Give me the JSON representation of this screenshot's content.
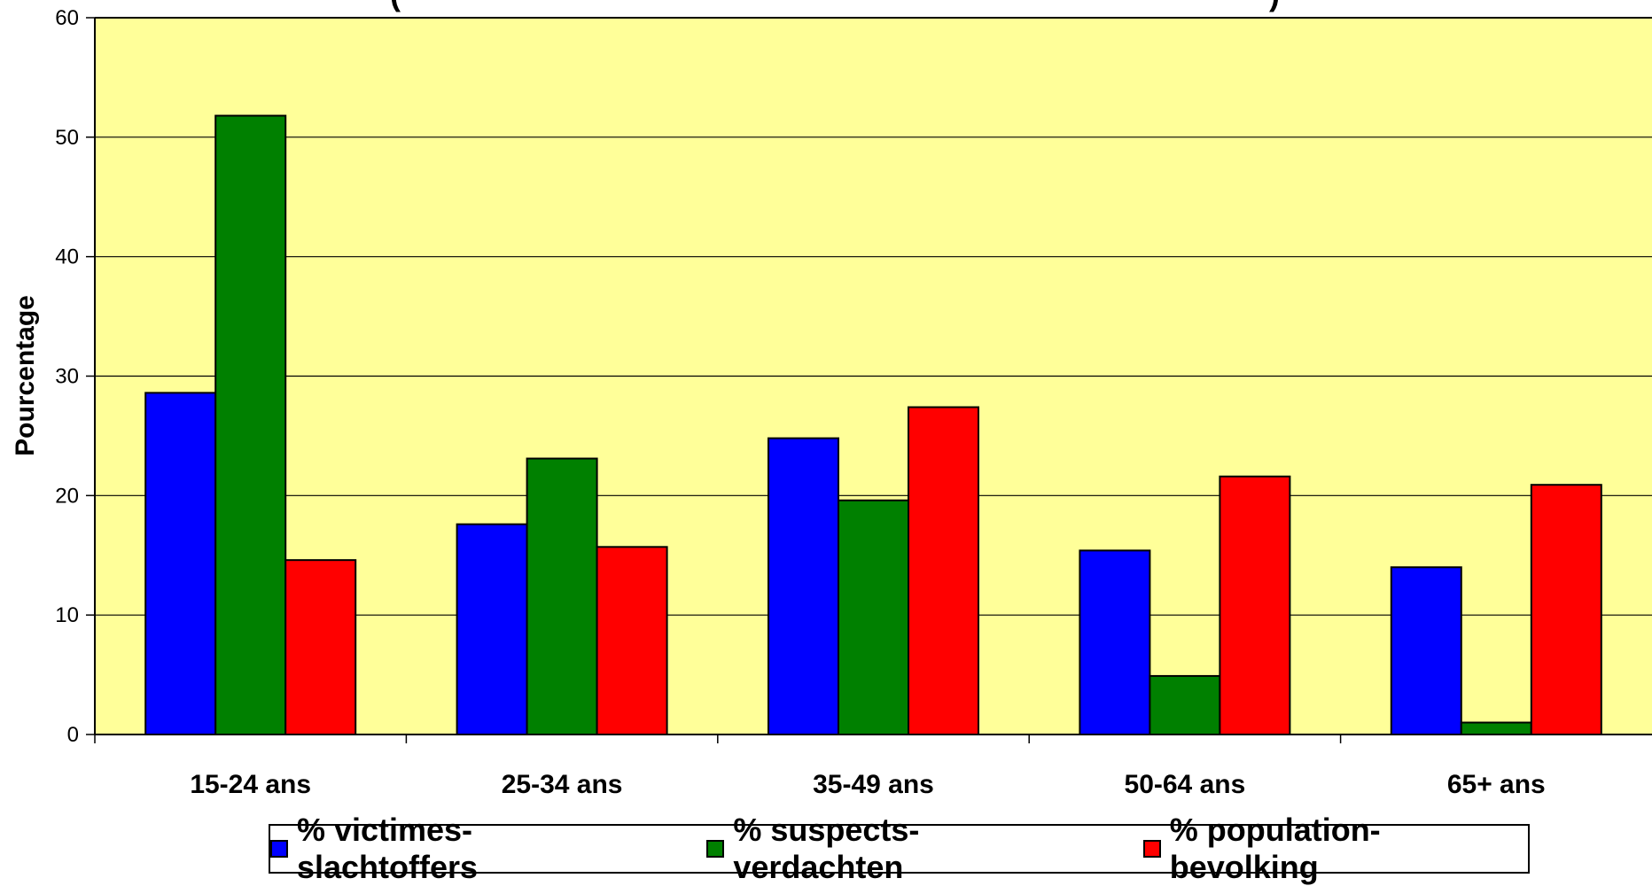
{
  "chart_data": {
    "type": "bar",
    "title": "(",
    "title_tail": ")",
    "ylabel": "Pourcentage",
    "ylim": [
      0,
      60
    ],
    "yticks": [
      "0",
      "10",
      "20",
      "30",
      "40",
      "50",
      "60"
    ],
    "grid": true,
    "legend_position": "bottom",
    "plot_background": "#ffff99",
    "categories": [
      "15-24 ans",
      "25-34 ans",
      "35-49 ans",
      "50-64 ans",
      "65+ ans"
    ],
    "series": [
      {
        "name": "% victimes-slachtoffers",
        "color": "#0000ff",
        "values": [
          28.6,
          17.6,
          24.8,
          15.4,
          14.0
        ]
      },
      {
        "name": "% suspects-verdachten",
        "color": "#008000",
        "values": [
          51.8,
          23.1,
          19.6,
          4.9,
          1.0
        ]
      },
      {
        "name": "% population-bevolking",
        "color": "#ff0000",
        "values": [
          14.6,
          15.7,
          27.4,
          21.6,
          20.9
        ]
      }
    ]
  }
}
